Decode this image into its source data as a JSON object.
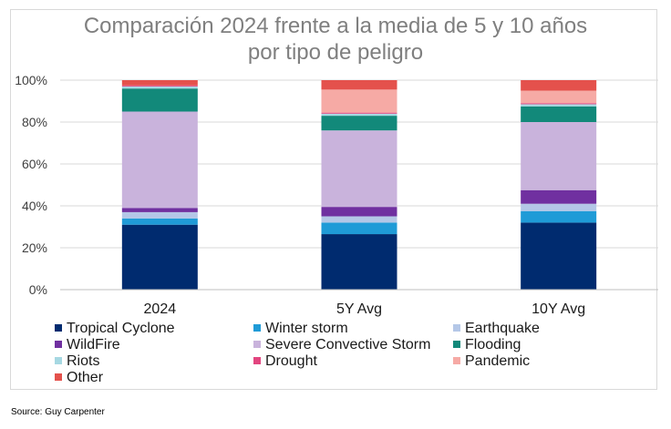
{
  "chart_data": {
    "type": "bar",
    "stacked": true,
    "title": [
      "Comparación 2024 frente a la media de 5 y 10 años",
      "por tipo de peligro"
    ],
    "xlabel": "",
    "ylabel": "",
    "ylim": [
      0,
      100
    ],
    "yticks": [
      "0%",
      "20%",
      "40%",
      "60%",
      "80%",
      "100%"
    ],
    "grid": true,
    "legend_position": "bottom",
    "categories": [
      "2024",
      "5Y Avg",
      "10Y Avg"
    ],
    "series": [
      {
        "name": "Tropical Cyclone",
        "color": "#002b6f",
        "values": [
          31,
          26.5,
          32
        ]
      },
      {
        "name": "Winter storm",
        "color": "#1f9bd7",
        "values": [
          3,
          5.5,
          5.5
        ]
      },
      {
        "name": "Earthquake",
        "color": "#b4c7e7",
        "values": [
          3,
          3,
          3.5
        ]
      },
      {
        "name": "WildFire",
        "color": "#7030a0",
        "values": [
          2,
          4.5,
          6.5
        ]
      },
      {
        "name": "Severe Convective Storm",
        "color": "#c9b3dc",
        "values": [
          46,
          36.5,
          32.5
        ]
      },
      {
        "name": "Flooding",
        "color": "#12897a",
        "values": [
          11,
          7,
          7.5
        ]
      },
      {
        "name": "Riots",
        "color": "#a6d8e2",
        "values": [
          1,
          1,
          1
        ]
      },
      {
        "name": "Drought",
        "color": "#e2457f",
        "values": [
          0.5,
          0.5,
          0.5
        ]
      },
      {
        "name": "Pandemic",
        "color": "#f6aaa5",
        "values": [
          0,
          11,
          6
        ]
      },
      {
        "name": "Other",
        "color": "#e4514c",
        "values": [
          2.5,
          4.5,
          5
        ]
      }
    ]
  },
  "source": "Source: Guy Carpenter"
}
